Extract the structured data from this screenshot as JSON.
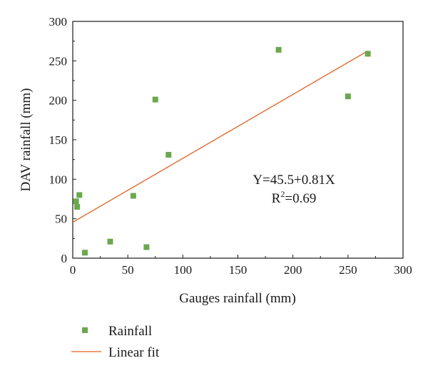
{
  "chart_data": {
    "type": "scatter",
    "title": "",
    "xlabel": "Gauges rainfall (mm)",
    "ylabel": "DAV rainfall (mm)",
    "xlim": [
      0,
      300
    ],
    "ylim": [
      0,
      300
    ],
    "xticks": [
      0,
      50,
      100,
      150,
      200,
      250,
      300
    ],
    "yticks": [
      0,
      50,
      100,
      150,
      200,
      250,
      300
    ],
    "grid": false,
    "legend_position": "bottom-left",
    "series": [
      {
        "name": "Rainfall",
        "kind": "scatter",
        "marker": "square",
        "color": "#6aa84f",
        "points": [
          {
            "x": 3,
            "y": 72
          },
          {
            "x": 4,
            "y": 65
          },
          {
            "x": 6,
            "y": 80
          },
          {
            "x": 11,
            "y": 7
          },
          {
            "x": 34,
            "y": 21
          },
          {
            "x": 55,
            "y": 79
          },
          {
            "x": 67,
            "y": 14
          },
          {
            "x": 75,
            "y": 201
          },
          {
            "x": 87,
            "y": 131
          },
          {
            "x": 187,
            "y": 264
          },
          {
            "x": 250,
            "y": 205
          },
          {
            "x": 268,
            "y": 259
          }
        ]
      },
      {
        "name": "Linear fit",
        "kind": "line",
        "color": "#e06020",
        "intercept": 45.5,
        "slope": 0.81,
        "x_range": [
          0,
          268
        ]
      }
    ],
    "annotations": {
      "equation": "Y=45.5+0.81X",
      "r2_prefix": "R",
      "r2_sup": "2",
      "r2_suffix": "=0.69"
    }
  }
}
